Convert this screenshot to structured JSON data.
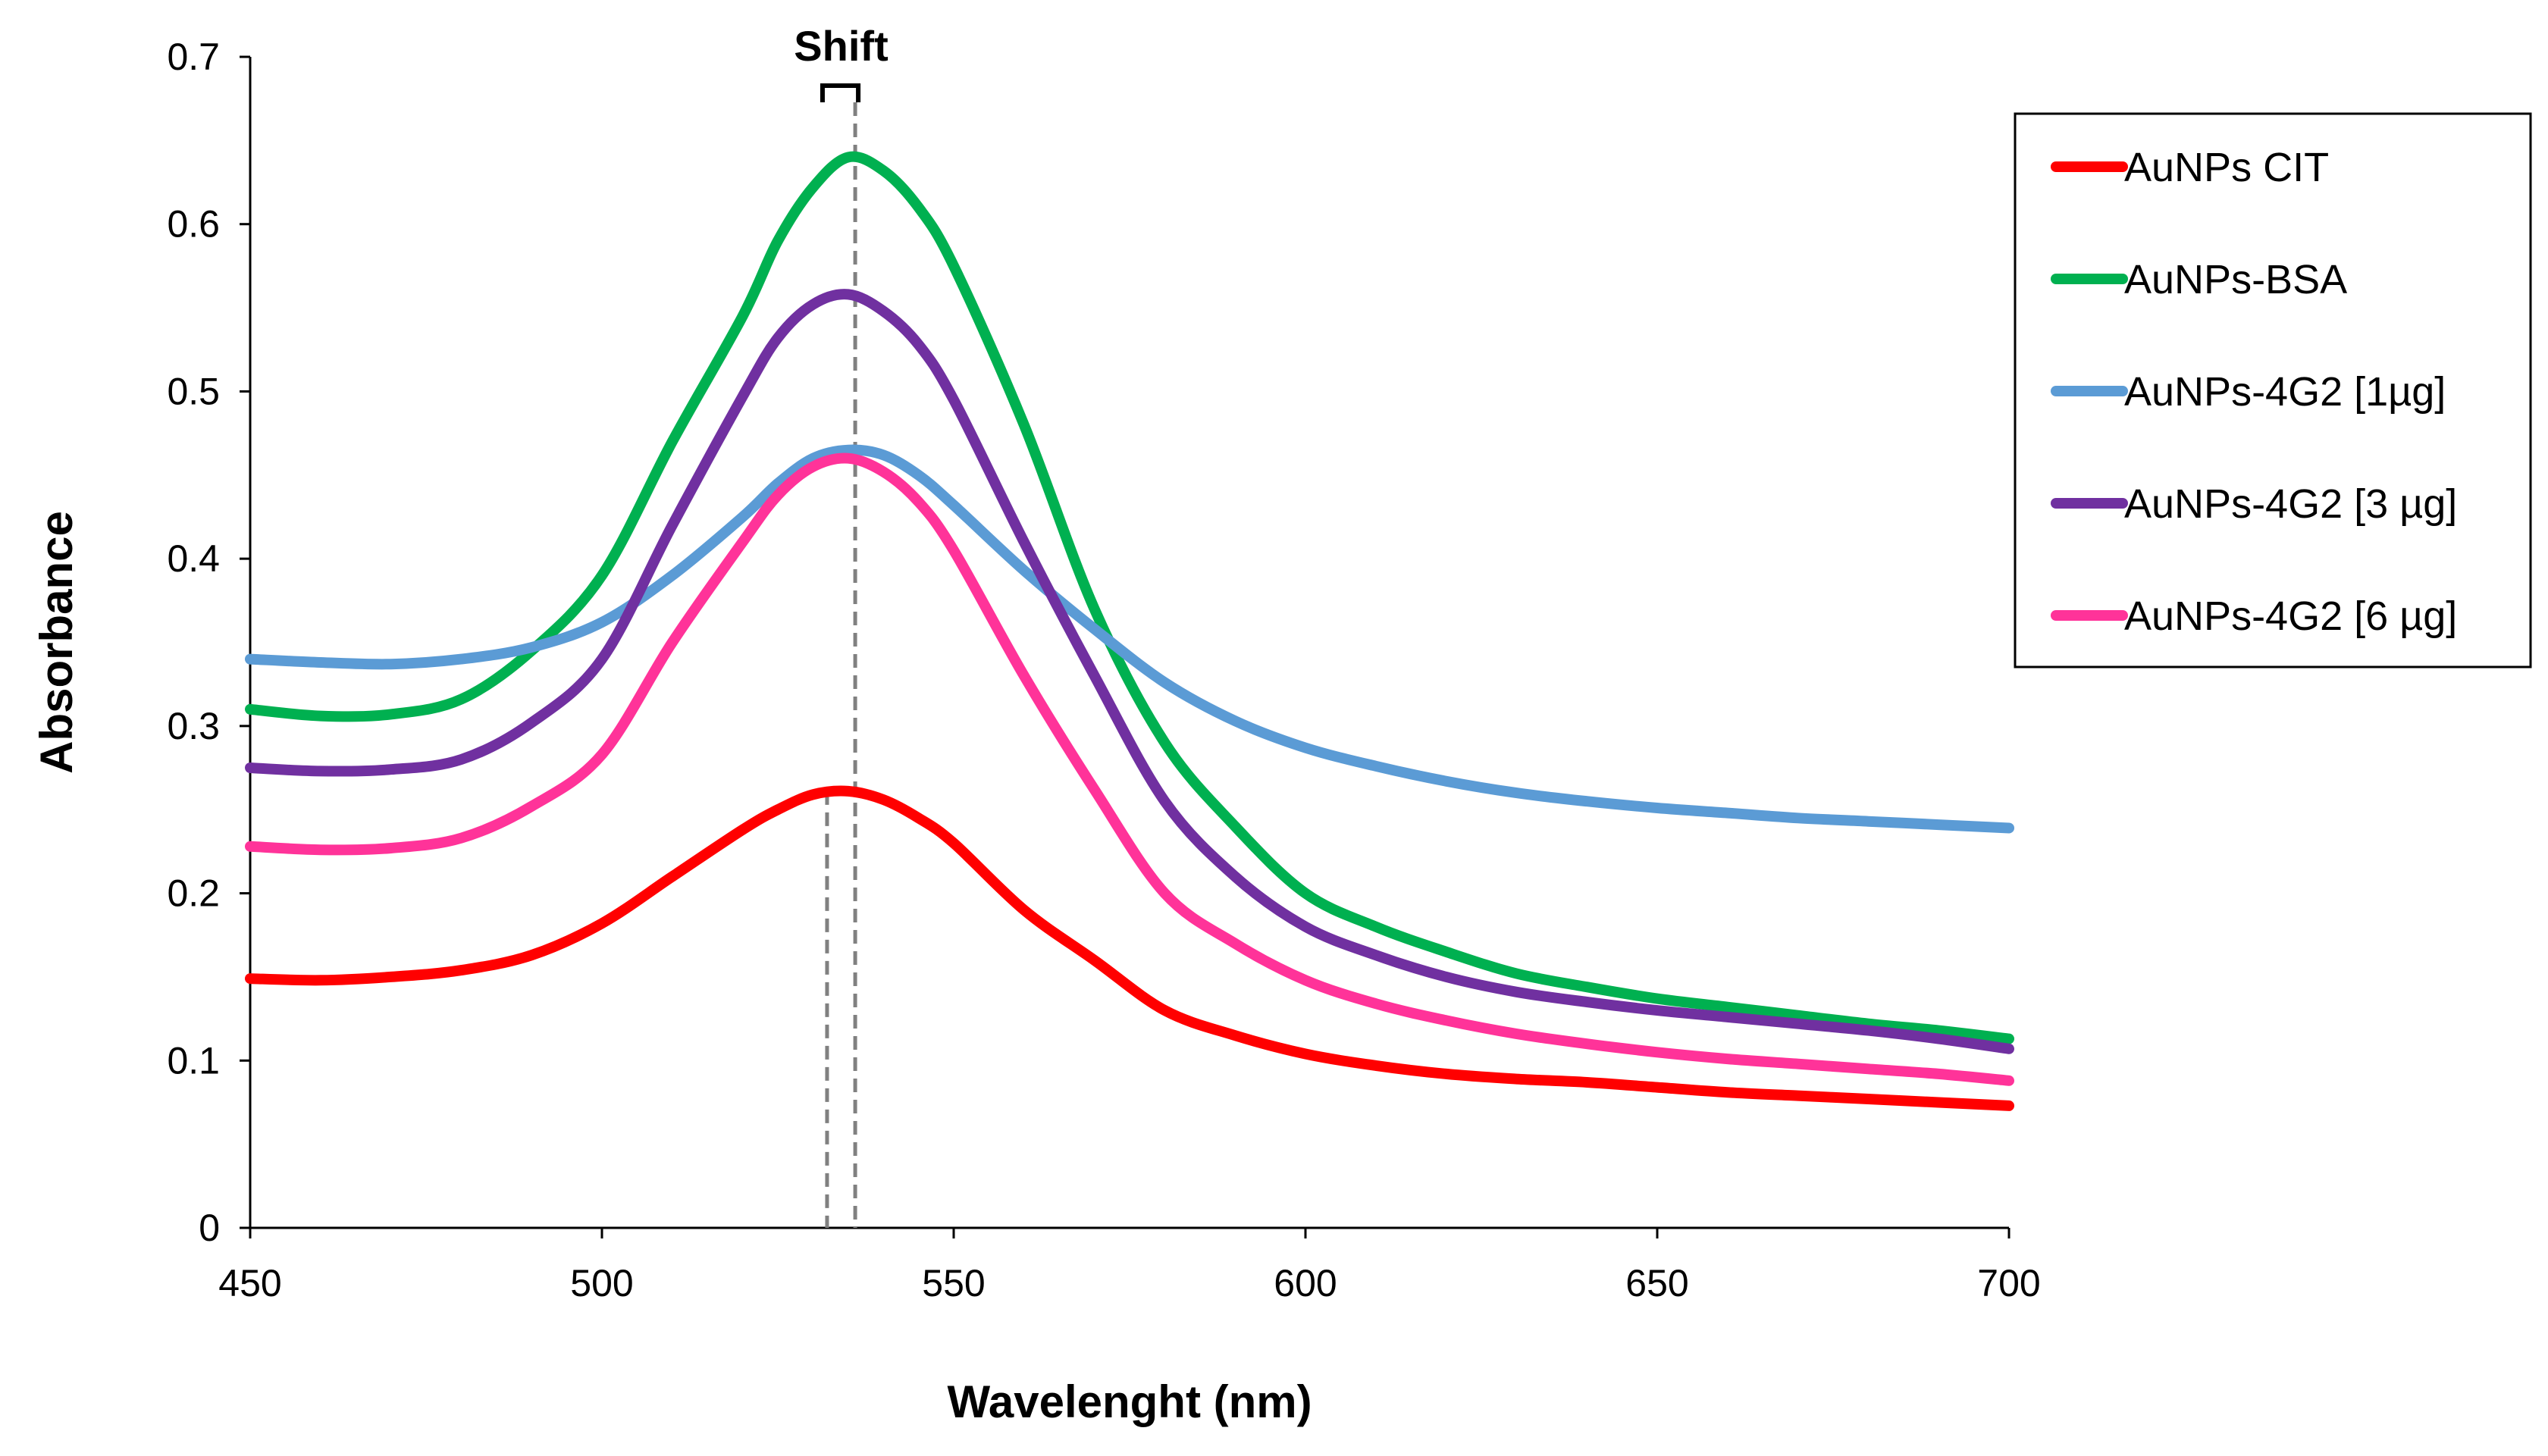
{
  "chart_data": {
    "type": "line",
    "title": "",
    "xlabel": "Wavelenght (nm)",
    "ylabel": "Absorbance",
    "xlim": [
      450,
      700
    ],
    "ylim": [
      0,
      0.7
    ],
    "xticks": [
      450,
      500,
      550,
      600,
      650,
      700
    ],
    "yticks": [
      0,
      0.1,
      0.2,
      0.3,
      0.4,
      0.5,
      0.6,
      0.7
    ],
    "ytick_labels": [
      "0",
      "0.1",
      "0.2",
      "0.3",
      "0.4",
      "0.5",
      "0.6",
      "0.7"
    ],
    "grid": false,
    "legend_position": "right",
    "x": [
      450,
      460,
      470,
      480,
      490,
      500,
      510,
      520,
      525,
      530,
      535,
      540,
      545,
      550,
      560,
      570,
      580,
      590,
      600,
      610,
      620,
      630,
      640,
      650,
      660,
      670,
      680,
      690,
      700
    ],
    "series": [
      {
        "name": "AuNPs CIT",
        "color": "#ff0000",
        "values": [
          0.149,
          0.148,
          0.15,
          0.154,
          0.163,
          0.182,
          0.21,
          0.238,
          0.25,
          0.259,
          0.261,
          0.256,
          0.245,
          0.23,
          0.19,
          0.16,
          0.13,
          0.115,
          0.104,
          0.097,
          0.092,
          0.089,
          0.087,
          0.084,
          0.081,
          0.079,
          0.077,
          0.075,
          0.073
        ]
      },
      {
        "name": "AuNPs-BSA",
        "color": "#00b050",
        "values": [
          0.31,
          0.306,
          0.307,
          0.316,
          0.345,
          0.39,
          0.47,
          0.545,
          0.59,
          0.622,
          0.64,
          0.632,
          0.61,
          0.575,
          0.48,
          0.37,
          0.29,
          0.24,
          0.2,
          0.18,
          0.165,
          0.152,
          0.144,
          0.137,
          0.132,
          0.127,
          0.122,
          0.118,
          0.113
        ]
      },
      {
        "name": "AuNPs-4G2 [1µg]",
        "color": "#5b9bd5",
        "values": [
          0.34,
          0.338,
          0.337,
          0.34,
          0.347,
          0.362,
          0.39,
          0.425,
          0.445,
          0.46,
          0.465,
          0.462,
          0.45,
          0.432,
          0.393,
          0.358,
          0.326,
          0.303,
          0.287,
          0.276,
          0.267,
          0.26,
          0.255,
          0.251,
          0.248,
          0.245,
          0.243,
          0.241,
          0.239
        ]
      },
      {
        "name": "AuNPs-4G2 [3 µg]",
        "color": "#7030a0",
        "values": [
          0.275,
          0.273,
          0.274,
          0.28,
          0.302,
          0.34,
          0.42,
          0.497,
          0.532,
          0.552,
          0.558,
          0.548,
          0.528,
          0.495,
          0.41,
          0.33,
          0.255,
          0.21,
          0.18,
          0.163,
          0.15,
          0.141,
          0.135,
          0.13,
          0.126,
          0.122,
          0.118,
          0.113,
          0.107
        ]
      },
      {
        "name": "AuNPs-4G2 [6 µg]",
        "color": "#ff3399",
        "values": [
          0.228,
          0.226,
          0.227,
          0.233,
          0.252,
          0.283,
          0.35,
          0.41,
          0.438,
          0.455,
          0.46,
          0.452,
          0.434,
          0.405,
          0.33,
          0.262,
          0.2,
          0.17,
          0.148,
          0.134,
          0.124,
          0.116,
          0.11,
          0.105,
          0.101,
          0.098,
          0.095,
          0.092,
          0.088
        ]
      }
    ],
    "annotations": {
      "shift_label": "Shift",
      "shift_lines": [
        532,
        536
      ]
    }
  }
}
